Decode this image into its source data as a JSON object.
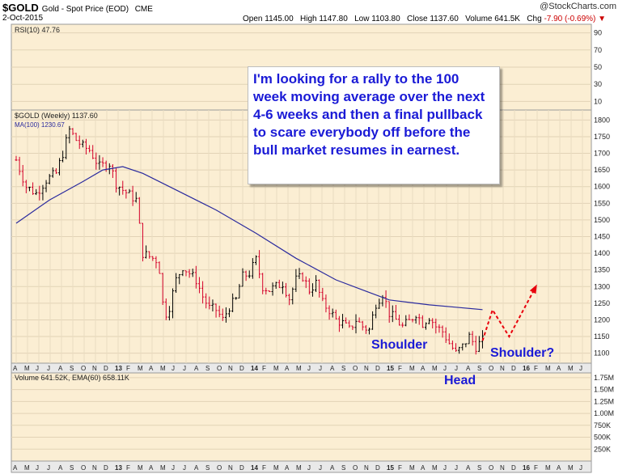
{
  "header": {
    "symbol": "$GOLD",
    "description": "Gold - Spot Price (EOD)",
    "exchange": "CME",
    "date": "2-Oct-2015",
    "brand": "@StockCharts.com",
    "open_label": "Open",
    "open": "1145.00",
    "high_label": "High",
    "high": "1147.80",
    "low_label": "Low",
    "low": "1103.80",
    "close_label": "Close",
    "close": "1137.60",
    "volume_label": "Volume",
    "volume": "641.5K",
    "chg_label": "Chg",
    "chg": "-7.90 (-0.69%)"
  },
  "annotation": {
    "note": "I'm looking for a rally to the 100 week moving average over the next 4-6 weeks and then a final pullback to scare everybody off before the bull market resumes in earnest.",
    "shoulder_left": "Shoulder",
    "head": "Head",
    "shoulder_right": "Shoulder?"
  },
  "colors": {
    "panel_bg": "#fbeed3",
    "up_bar": "#000000",
    "down_bar": "#d4002a",
    "ma_line": "#2a2a9e",
    "projection": "#e8000c",
    "annotation_text": "#1a1ad6"
  },
  "chart_data": [
    {
      "type": "line",
      "panel": "rsi",
      "legend": "RSI(10) 47.76",
      "yticks": [
        "90",
        "70",
        "50",
        "30",
        "10"
      ],
      "ylim": [
        0,
        100
      ],
      "series": [
        {
          "name": "RSI(10)",
          "values": []
        }
      ]
    },
    {
      "type": "ohlc",
      "panel": "price",
      "legend": [
        "$GOLD (Weekly) 1137.60",
        "MA(100) 1230.67"
      ],
      "yticks": [
        "1800",
        "1750",
        "1700",
        "1650",
        "1600",
        "1550",
        "1500",
        "1450",
        "1400",
        "1350",
        "1300",
        "1250",
        "1200",
        "1150",
        "1100"
      ],
      "ylim": [
        1070,
        1830
      ],
      "xticks": [
        "A",
        "M",
        "J",
        "J",
        "A",
        "S",
        "O",
        "N",
        "D",
        "13",
        "F",
        "M",
        "A",
        "M",
        "J",
        "J",
        "A",
        "S",
        "O",
        "N",
        "D",
        "14",
        "F",
        "M",
        "A",
        "M",
        "J",
        "J",
        "A",
        "S",
        "O",
        "N",
        "D",
        "15",
        "F",
        "M",
        "A",
        "M",
        "J",
        "J",
        "A",
        "S",
        "O",
        "N",
        "D",
        "16",
        "F",
        "M",
        "A",
        "M",
        "J"
      ],
      "series": [
        {
          "name": "$GOLD (Weekly)",
          "points": [
            [
              0,
              1680
            ],
            [
              3,
              1600
            ],
            [
              6,
              1580
            ],
            [
              9,
              1620
            ],
            [
              12,
              1640
            ],
            [
              14,
              1700
            ],
            [
              16,
              1770
            ],
            [
              18,
              1740
            ],
            [
              20,
              1720
            ],
            [
              22,
              1710
            ],
            [
              25,
              1660
            ],
            [
              28,
              1670
            ],
            [
              30,
              1610
            ],
            [
              32,
              1590
            ],
            [
              34,
              1575
            ],
            [
              36,
              1560
            ],
            [
              37,
              1480
            ],
            [
              38,
              1400
            ],
            [
              40,
              1390
            ],
            [
              42,
              1380
            ],
            [
              43,
              1350
            ],
            [
              44,
              1250
            ],
            [
              45,
              1220
            ],
            [
              46,
              1240
            ],
            [
              48,
              1320
            ],
            [
              50,
              1360
            ],
            [
              52,
              1340
            ],
            [
              54,
              1320
            ],
            [
              56,
              1270
            ],
            [
              58,
              1235
            ],
            [
              60,
              1230
            ],
            [
              62,
              1200
            ],
            [
              64,
              1240
            ],
            [
              66,
              1260
            ],
            [
              67,
              1300
            ],
            [
              68,
              1330
            ],
            [
              70,
              1340
            ],
            [
              72,
              1380
            ],
            [
              74,
              1300
            ],
            [
              76,
              1290
            ],
            [
              78,
              1300
            ],
            [
              80,
              1310
            ],
            [
              82,
              1265
            ],
            [
              84,
              1320
            ],
            [
              86,
              1330
            ],
            [
              88,
              1290
            ],
            [
              90,
              1310
            ],
            [
              92,
              1250
            ],
            [
              94,
              1230
            ],
            [
              96,
              1200
            ],
            [
              98,
              1190
            ],
            [
              100,
              1170
            ],
            [
              102,
              1200
            ],
            [
              104,
              1180
            ],
            [
              106,
              1170
            ],
            [
              108,
              1250
            ],
            [
              110,
              1280
            ],
            [
              112,
              1220
            ],
            [
              114,
              1200
            ],
            [
              116,
              1180
            ],
            [
              118,
              1195
            ],
            [
              120,
              1220
            ],
            [
              122,
              1190
            ],
            [
              124,
              1210
            ],
            [
              126,
              1180
            ],
            [
              128,
              1165
            ],
            [
              130,
              1130
            ],
            [
              132,
              1100
            ],
            [
              134,
              1120
            ],
            [
              136,
              1150
            ],
            [
              138,
              1120
            ],
            [
              140,
              1137.6
            ]
          ]
        },
        {
          "name": "MA(100)",
          "points": [
            [
              0,
              1490
            ],
            [
              10,
              1560
            ],
            [
              20,
              1615
            ],
            [
              26,
              1650
            ],
            [
              32,
              1660
            ],
            [
              38,
              1640
            ],
            [
              48,
              1590
            ],
            [
              60,
              1530
            ],
            [
              72,
              1460
            ],
            [
              84,
              1385
            ],
            [
              96,
              1320
            ],
            [
              104,
              1290
            ],
            [
              112,
              1260
            ],
            [
              124,
              1245
            ],
            [
              132,
              1238
            ],
            [
              140,
              1230.67
            ]
          ]
        },
        {
          "name": "Projection",
          "points": [
            [
              140,
              1137.6
            ],
            [
              143,
              1230
            ],
            [
              148,
              1150
            ],
            [
              156,
              1300
            ]
          ]
        }
      ]
    },
    {
      "type": "bar",
      "panel": "volume",
      "legend": "Volume 641.52K, EMA(60) 658.11K",
      "yticks": [
        "1.75M",
        "1.50M",
        "1.25M",
        "1.00M",
        "750K",
        "500K",
        "250K"
      ],
      "ylim": [
        0,
        1850000
      ],
      "xticks": [
        "A",
        "M",
        "J",
        "J",
        "A",
        "S",
        "O",
        "N",
        "D",
        "13",
        "F",
        "M",
        "A",
        "M",
        "J",
        "J",
        "A",
        "S",
        "O",
        "N",
        "D",
        "14",
        "F",
        "M",
        "A",
        "M",
        "J",
        "J",
        "A",
        "S",
        "O",
        "N",
        "D",
        "15",
        "F",
        "M",
        "A",
        "M",
        "J",
        "J",
        "A",
        "S",
        "O",
        "N",
        "D",
        "16",
        "F",
        "M",
        "A",
        "M",
        "J"
      ],
      "series": [
        {
          "name": "Volume",
          "values": []
        }
      ]
    }
  ]
}
